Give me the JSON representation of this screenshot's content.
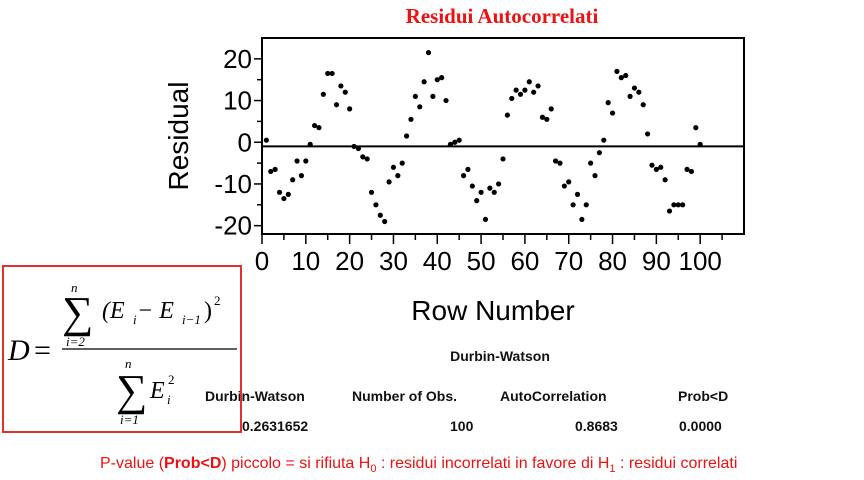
{
  "chart_data": {
    "type": "scatter",
    "title": "Residui Autocorrelati",
    "xlabel": "Row Number",
    "ylabel": "Residual",
    "xlim": [
      0,
      110
    ],
    "ylim": [
      -22,
      25
    ],
    "xticks": [
      0,
      10,
      20,
      30,
      40,
      50,
      60,
      70,
      80,
      90,
      100
    ],
    "yticks": [
      -20,
      -10,
      0,
      10,
      20
    ],
    "reference_line_y": -1,
    "grid": false,
    "points": [
      [
        1,
        0.5
      ],
      [
        2,
        -7
      ],
      [
        3,
        -6.5
      ],
      [
        4,
        -12
      ],
      [
        5,
        -13.5
      ],
      [
        6,
        -12.5
      ],
      [
        7,
        -9
      ],
      [
        8,
        -4.5
      ],
      [
        9,
        -8
      ],
      [
        10,
        -4.5
      ],
      [
        11,
        -0.5
      ],
      [
        12,
        4
      ],
      [
        13,
        3.5
      ],
      [
        14,
        11.5
      ],
      [
        15,
        16.5
      ],
      [
        16,
        16.5
      ],
      [
        17,
        9
      ],
      [
        18,
        13.5
      ],
      [
        19,
        12
      ],
      [
        20,
        8
      ],
      [
        21,
        -1
      ],
      [
        22,
        -1.5
      ],
      [
        23,
        -3.5
      ],
      [
        24,
        -4
      ],
      [
        25,
        -12
      ],
      [
        26,
        -15
      ],
      [
        27,
        -17.5
      ],
      [
        28,
        -19
      ],
      [
        29,
        -9.5
      ],
      [
        30,
        -6
      ],
      [
        31,
        -8
      ],
      [
        32,
        -5
      ],
      [
        33,
        1.5
      ],
      [
        34,
        5.5
      ],
      [
        35,
        11
      ],
      [
        36,
        8.5
      ],
      [
        37,
        14.5
      ],
      [
        38,
        21.5
      ],
      [
        39,
        11
      ],
      [
        40,
        15
      ],
      [
        41,
        15.5
      ],
      [
        42,
        10
      ],
      [
        43,
        -0.5
      ],
      [
        44,
        0
      ],
      [
        45,
        0.5
      ],
      [
        46,
        -8
      ],
      [
        47,
        -6.5
      ],
      [
        48,
        -10.5
      ],
      [
        49,
        -14
      ],
      [
        50,
        -12
      ],
      [
        51,
        -18.5
      ],
      [
        52,
        -11
      ],
      [
        53,
        -12
      ],
      [
        54,
        -10
      ],
      [
        55,
        -4
      ],
      [
        56,
        6.5
      ],
      [
        57,
        10.5
      ],
      [
        58,
        12.5
      ],
      [
        59,
        11.5
      ],
      [
        60,
        12.5
      ],
      [
        61,
        14.5
      ],
      [
        62,
        12
      ],
      [
        63,
        13.5
      ],
      [
        64,
        6
      ],
      [
        65,
        5.5
      ],
      [
        66,
        8
      ],
      [
        67,
        -4.5
      ],
      [
        68,
        -5
      ],
      [
        69,
        -10.5
      ],
      [
        70,
        -9.5
      ],
      [
        71,
        -15
      ],
      [
        72,
        -12.5
      ],
      [
        73,
        -18.5
      ],
      [
        74,
        -15
      ],
      [
        75,
        -5
      ],
      [
        76,
        -8
      ],
      [
        77,
        -2.5
      ],
      [
        78,
        0.5
      ],
      [
        79,
        9.5
      ],
      [
        80,
        7
      ],
      [
        81,
        17
      ],
      [
        82,
        15.5
      ],
      [
        83,
        16
      ],
      [
        84,
        11
      ],
      [
        85,
        13
      ],
      [
        86,
        12
      ],
      [
        87,
        9
      ],
      [
        88,
        2
      ],
      [
        89,
        -5.5
      ],
      [
        90,
        -6.5
      ],
      [
        91,
        -6
      ],
      [
        92,
        -9
      ],
      [
        93,
        -16.5
      ],
      [
        94,
        -15
      ],
      [
        95,
        -15
      ],
      [
        96,
        -15
      ],
      [
        97,
        -6.5
      ],
      [
        98,
        -7
      ],
      [
        99,
        3.5
      ],
      [
        100,
        -0.5
      ]
    ]
  },
  "durbin_watson": {
    "title": "Durbin-Watson",
    "headers": [
      "Durbin-Watson",
      "Number of Obs.",
      "AutoCorrelation",
      "Prob<D"
    ],
    "values": [
      "0.2631652",
      "100",
      "0.8683",
      "0.0000"
    ]
  },
  "formula": {
    "lhs": "D",
    "equals": "=",
    "num_sigma": "∑",
    "num_upper": "n",
    "num_lower": "i=2",
    "num_term_open": "(E",
    "num_sub_i": "i",
    "num_minus": " − E",
    "num_sub_im1": "i−1",
    "num_term_close": ")",
    "num_exp": "2",
    "den_sigma": "∑",
    "den_upper": "n",
    "den_lower": "i=1",
    "den_term": "E",
    "den_sub": "i",
    "den_exp": "2"
  },
  "footer": {
    "part1": "P-value (",
    "bold": "Prob<D",
    "part2": ") piccolo = si rifiuta H",
    "sub0": "0",
    "part3": " : residui incorrelati in favore di H",
    "sub1": "1",
    "part4": " : residui correlati"
  },
  "colors": {
    "title": "#ee1111",
    "box_border": "#e03030",
    "points": "#000000"
  }
}
